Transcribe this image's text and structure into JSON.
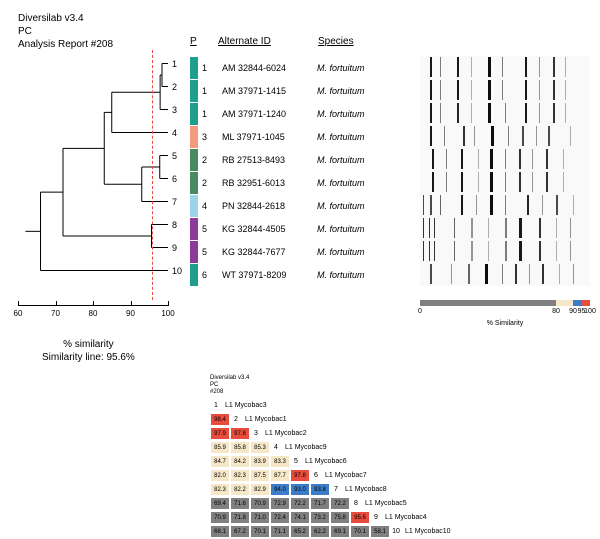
{
  "header": {
    "l1": "Diversilab v3.4",
    "l2": "PC",
    "l3": "Analysis Report #208"
  },
  "dendro": {
    "xlim": [
      60,
      100
    ],
    "xticks": [
      60,
      70,
      80,
      90,
      100
    ],
    "threshold_pct": 95.6,
    "xlabel": "% similarity",
    "simline_text": "Similarity line: 95.6%",
    "leaves": [
      1,
      2,
      3,
      4,
      5,
      6,
      7,
      8,
      9,
      10
    ],
    "line_color": "#000000",
    "threshold_color": "#e74c3c"
  },
  "table": {
    "headers": {
      "p": "P",
      "alt": "Alternate ID",
      "sp": "Species"
    },
    "rows": [
      {
        "color": "#1f9e8e",
        "p": "1",
        "alt": "AM 32844-6024",
        "sp": "M. fortuitum"
      },
      {
        "color": "#1f9e8e",
        "p": "1",
        "alt": "AM 37971-1415",
        "sp": "M. fortuitum"
      },
      {
        "color": "#1f9e8e",
        "p": "1",
        "alt": "AM 37971-1240",
        "sp": "M. fortuitum"
      },
      {
        "color": "#f39c7c",
        "p": "3",
        "alt": "ML 37971-1045",
        "sp": "M. fortuitum"
      },
      {
        "color": "#4a8a63",
        "p": "2",
        "alt": "RB 27513-8493",
        "sp": "M. fortuitum"
      },
      {
        "color": "#4a8a63",
        "p": "2",
        "alt": "RB 32951-6013",
        "sp": "M. fortuitum"
      },
      {
        "color": "#9bd3e8",
        "p": "4",
        "alt": "PN 32844-2618",
        "sp": "M. fortuitum"
      },
      {
        "color": "#8e3a9b",
        "p": "5",
        "alt": "KG 32844-4505",
        "sp": "M. fortuitum"
      },
      {
        "color": "#8e3a9b",
        "p": "5",
        "alt": "KG 32844-7677",
        "sp": "M. fortuitum"
      },
      {
        "color": "#1f9e8e",
        "p": "6",
        "alt": "WT 37971-8209",
        "sp": "M. fortuitum"
      }
    ]
  },
  "bands": {
    "comment": "band patterns approximated as [position_pct, width_px, opacity]",
    "rows": [
      [
        [
          6,
          2,
          0.9
        ],
        [
          12,
          1,
          0.5
        ],
        [
          22,
          2,
          0.9
        ],
        [
          30,
          1,
          0.3
        ],
        [
          40,
          3,
          0.95
        ],
        [
          48,
          1,
          0.5
        ],
        [
          62,
          2,
          0.9
        ],
        [
          70,
          1,
          0.4
        ],
        [
          78,
          2,
          0.8
        ],
        [
          85,
          1,
          0.3
        ]
      ],
      [
        [
          6,
          2,
          0.9
        ],
        [
          12,
          1,
          0.5
        ],
        [
          22,
          2,
          0.9
        ],
        [
          30,
          1,
          0.3
        ],
        [
          40,
          3,
          0.95
        ],
        [
          48,
          1,
          0.5
        ],
        [
          62,
          2,
          0.9
        ],
        [
          70,
          1,
          0.4
        ],
        [
          78,
          2,
          0.8
        ],
        [
          85,
          1,
          0.3
        ]
      ],
      [
        [
          6,
          2,
          0.9
        ],
        [
          12,
          1,
          0.5
        ],
        [
          22,
          2,
          0.85
        ],
        [
          30,
          1,
          0.3
        ],
        [
          40,
          3,
          0.95
        ],
        [
          50,
          1,
          0.5
        ],
        [
          62,
          2,
          0.9
        ],
        [
          70,
          1,
          0.4
        ],
        [
          78,
          2,
          0.8
        ],
        [
          85,
          1,
          0.3
        ]
      ],
      [
        [
          6,
          2,
          0.9
        ],
        [
          14,
          1,
          0.5
        ],
        [
          25,
          2,
          0.8
        ],
        [
          32,
          1,
          0.4
        ],
        [
          42,
          3,
          0.95
        ],
        [
          52,
          1,
          0.5
        ],
        [
          60,
          2,
          0.7
        ],
        [
          68,
          1,
          0.4
        ],
        [
          75,
          2,
          0.7
        ],
        [
          88,
          1,
          0.3
        ]
      ],
      [
        [
          7,
          2,
          0.9
        ],
        [
          15,
          1,
          0.5
        ],
        [
          24,
          2,
          0.9
        ],
        [
          34,
          1,
          0.3
        ],
        [
          41,
          3,
          0.95
        ],
        [
          50,
          1,
          0.5
        ],
        [
          58,
          2,
          0.8
        ],
        [
          66,
          1,
          0.4
        ],
        [
          74,
          2,
          0.8
        ],
        [
          84,
          1,
          0.3
        ]
      ],
      [
        [
          7,
          2,
          0.9
        ],
        [
          15,
          1,
          0.5
        ],
        [
          24,
          2,
          0.9
        ],
        [
          34,
          1,
          0.3
        ],
        [
          41,
          3,
          0.95
        ],
        [
          50,
          1,
          0.5
        ],
        [
          58,
          2,
          0.8
        ],
        [
          66,
          1,
          0.4
        ],
        [
          74,
          2,
          0.8
        ],
        [
          84,
          1,
          0.3
        ]
      ],
      [
        [
          2,
          1,
          0.7
        ],
        [
          6,
          2,
          0.7
        ],
        [
          12,
          1,
          0.6
        ],
        [
          24,
          2,
          0.9
        ],
        [
          33,
          1,
          0.4
        ],
        [
          41,
          3,
          0.95
        ],
        [
          50,
          1,
          0.5
        ],
        [
          63,
          2,
          0.85
        ],
        [
          72,
          1,
          0.4
        ],
        [
          80,
          2,
          0.7
        ],
        [
          90,
          1,
          0.3
        ]
      ],
      [
        [
          2,
          1,
          0.8
        ],
        [
          5,
          1,
          0.8
        ],
        [
          8,
          1,
          0.8
        ],
        [
          20,
          1,
          0.6
        ],
        [
          30,
          2,
          0.4
        ],
        [
          40,
          1,
          0.3
        ],
        [
          50,
          2,
          0.5
        ],
        [
          58,
          3,
          0.9
        ],
        [
          70,
          2,
          0.8
        ],
        [
          80,
          1,
          0.3
        ],
        [
          88,
          1,
          0.4
        ]
      ],
      [
        [
          2,
          1,
          0.8
        ],
        [
          5,
          1,
          0.8
        ],
        [
          8,
          1,
          0.8
        ],
        [
          20,
          1,
          0.6
        ],
        [
          30,
          2,
          0.4
        ],
        [
          40,
          1,
          0.3
        ],
        [
          50,
          2,
          0.5
        ],
        [
          58,
          3,
          0.9
        ],
        [
          70,
          2,
          0.8
        ],
        [
          80,
          1,
          0.3
        ],
        [
          88,
          1,
          0.4
        ]
      ],
      [
        [
          6,
          2,
          0.7
        ],
        [
          18,
          1,
          0.4
        ],
        [
          28,
          2,
          0.6
        ],
        [
          38,
          3,
          0.95
        ],
        [
          48,
          1,
          0.5
        ],
        [
          56,
          2,
          0.8
        ],
        [
          64,
          1,
          0.4
        ],
        [
          72,
          2,
          0.8
        ],
        [
          82,
          1,
          0.3
        ],
        [
          90,
          1,
          0.4
        ]
      ]
    ]
  },
  "sim_legend": {
    "stops": [
      {
        "color": "#808080",
        "from": 0,
        "to": 80
      },
      {
        "color": "#f5e7c8",
        "from": 80,
        "to": 90
      },
      {
        "color": "#3d7cc9",
        "from": 90,
        "to": 95
      },
      {
        "color": "#e74c3c",
        "from": 95,
        "to": 100
      }
    ],
    "ticks": [
      0,
      80,
      90,
      95,
      100
    ],
    "title": "% Similarity"
  },
  "heatmap": {
    "header": {
      "l1": "Diversilab v3.4",
      "l2": "PC",
      "l3": "#208"
    },
    "labels": [
      "L1 Mycobac3",
      "L1 Mycobac1",
      "L1 Mycobac2",
      "L1 Mycobac9",
      "L1 Mycobac6",
      "L1 Mycobac7",
      "L1 Mycobac8",
      "L1 Mycobac5",
      "L1 Mycobac4",
      "L1 Mycobac10"
    ],
    "matrix": [
      [],
      [
        98.4
      ],
      [
        97.9,
        97.8
      ],
      [
        85.9,
        85.8,
        85.3
      ],
      [
        84.7,
        84.2,
        83.9,
        83.3
      ],
      [
        82.0,
        82.3,
        87.5,
        87.7,
        97.8
      ],
      [
        82.3,
        82.2,
        82.9,
        94.0,
        93.0,
        93.8
      ],
      [
        69.4,
        71.6,
        70.9,
        72.9,
        72.2,
        71.7,
        72.2
      ],
      [
        70.9,
        71.8,
        71.0,
        72.4,
        74.1,
        73.2,
        75.8,
        95.6
      ],
      [
        68.1,
        67.2,
        70.1,
        71.1,
        65.2,
        62.2,
        69.1,
        70.1,
        58.1
      ]
    ],
    "color_scale": {
      "lt80": "#808080",
      "lt90": "#f5e7c8",
      "lt95": "#3d7cc9",
      "ge95": "#e74c3c"
    }
  }
}
